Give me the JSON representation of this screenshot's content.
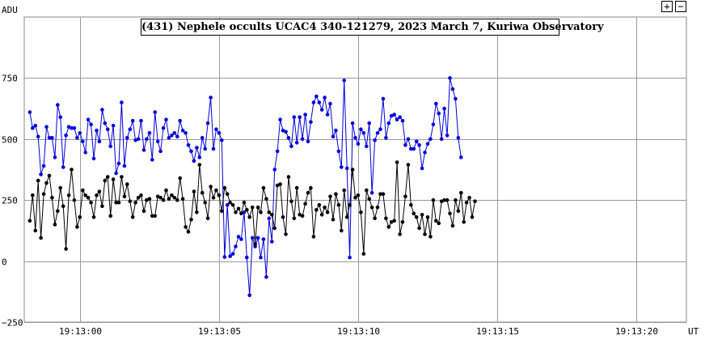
{
  "chart_data": {
    "type": "line",
    "title": "(431) Nephele occults UCAC4 340-121279, 2023 March 7, Kuriwa Observatory",
    "ylabel": "ADU",
    "xlabel": "UT",
    "ylim": [
      -250,
      1000
    ],
    "yticks": [
      {
        "value": 750,
        "label": "750"
      },
      {
        "value": 500,
        "label": "500"
      },
      {
        "value": 250,
        "label": "250"
      },
      {
        "value": 0,
        "label": "0"
      },
      {
        "value": -250,
        "label": "−250"
      }
    ],
    "x_domain_seconds": [
      -2.0,
      21.8
    ],
    "xticks": [
      {
        "value": 0,
        "label": "19:13:00"
      },
      {
        "value": 5,
        "label": "19:13:05"
      },
      {
        "value": 10,
        "label": "19:13:10"
      },
      {
        "value": 15,
        "label": "19:13:15"
      },
      {
        "value": 20,
        "label": "19:13:20"
      }
    ],
    "sample_start_seconds": -1.8,
    "sample_interval_seconds": 0.1,
    "grid": true,
    "series": [
      {
        "color": "#0000dd",
        "values": [
          610,
          545,
          555,
          510,
          355,
          390,
          550,
          505,
          505,
          425,
          640,
          590,
          385,
          515,
          550,
          545,
          545,
          505,
          525,
          490,
          445,
          580,
          560,
          420,
          535,
          490,
          620,
          565,
          540,
          470,
          555,
          360,
          400,
          650,
          390,
          505,
          540,
          575,
          495,
          500,
          575,
          455,
          500,
          525,
          415,
          610,
          490,
          450,
          545,
          580,
          505,
          515,
          525,
          510,
          575,
          535,
          525,
          475,
          450,
          410,
          465,
          425,
          505,
          460,
          565,
          670,
          460,
          540,
          525,
          495,
          17,
          230,
          20,
          30,
          60,
          100,
          90,
          200,
          15,
          -140,
          95,
          60,
          95,
          15,
          90,
          -65,
          175,
          80,
          375,
          450,
          580,
          535,
          530,
          505,
          470,
          590,
          485,
          590,
          500,
          600,
          490,
          570,
          650,
          675,
          650,
          620,
          670,
          600,
          645,
          510,
          535,
          450,
          385,
          740,
          380,
          15,
          565,
          505,
          480,
          540,
          525,
          470,
          565,
          280,
          495,
          525,
          540,
          665,
          505,
          565,
          595,
          600,
          580,
          590,
          575,
          475,
          500,
          460,
          460,
          490,
          475,
          380,
          445,
          480,
          500,
          560,
          645,
          605,
          500,
          625,
          515,
          750,
          705,
          665,
          505,
          425
        ]
      },
      {
        "color": "#000000",
        "values": [
          165,
          270,
          125,
          330,
          95,
          275,
          320,
          350,
          260,
          150,
          205,
          300,
          225,
          50,
          270,
          375,
          250,
          140,
          180,
          290,
          270,
          260,
          240,
          180,
          270,
          285,
          225,
          330,
          345,
          185,
          335,
          240,
          240,
          345,
          265,
          315,
          245,
          180,
          240,
          260,
          270,
          205,
          250,
          255,
          185,
          185,
          265,
          260,
          250,
          290,
          255,
          270,
          260,
          250,
          340,
          255,
          140,
          120,
          170,
          285,
          200,
          395,
          280,
          240,
          175,
          305,
          260,
          290,
          270,
          205,
          300,
          275,
          240,
          230,
          200,
          215,
          195,
          240,
          210,
          180,
          220,
          70,
          220,
          200,
          300,
          255,
          200,
          190,
          135,
          310,
          315,
          180,
          110,
          345,
          245,
          175,
          300,
          190,
          185,
          235,
          280,
          300,
          100,
          210,
          230,
          190,
          220,
          200,
          265,
          170,
          275,
          230,
          125,
          290,
          180,
          230,
          375,
          260,
          270,
          200,
          30,
          290,
          255,
          220,
          175,
          220,
          275,
          275,
          175,
          140,
          160,
          165,
          405,
          110,
          160,
          265,
          395,
          230,
          195,
          180,
          135,
          190,
          110,
          180,
          100,
          250,
          165,
          155,
          245,
          250,
          250,
          195,
          145,
          250,
          205,
          280,
          160,
          240,
          260,
          180,
          245
        ]
      }
    ]
  },
  "controls": {
    "zoom_in_label": "+",
    "zoom_out_label": "−"
  }
}
